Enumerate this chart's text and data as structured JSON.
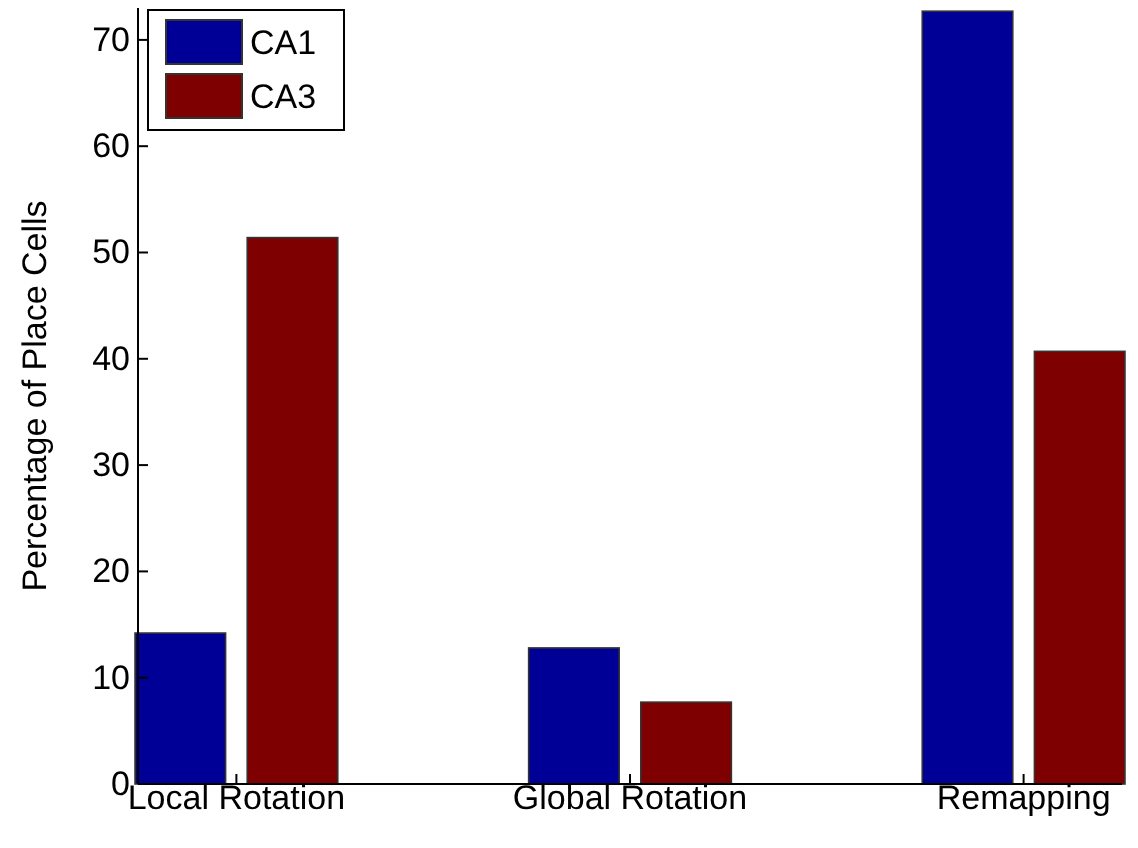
{
  "chart_data": {
    "type": "bar",
    "ylabel": "Percentage of Place Cells",
    "categories": [
      "Local Rotation",
      "Global Rotation",
      "Remapping"
    ],
    "series": [
      {
        "name": "CA1",
        "color": "#000096",
        "values": [
          14.2,
          12.8,
          72.7
        ]
      },
      {
        "name": "CA3",
        "color": "#7f0000",
        "values": [
          51.4,
          7.7,
          40.7
        ]
      }
    ],
    "ylim": [
      0,
      73
    ],
    "yticks": [
      0,
      10,
      20,
      30,
      40,
      50,
      60,
      70
    ],
    "legend": "top left",
    "grid": false
  }
}
